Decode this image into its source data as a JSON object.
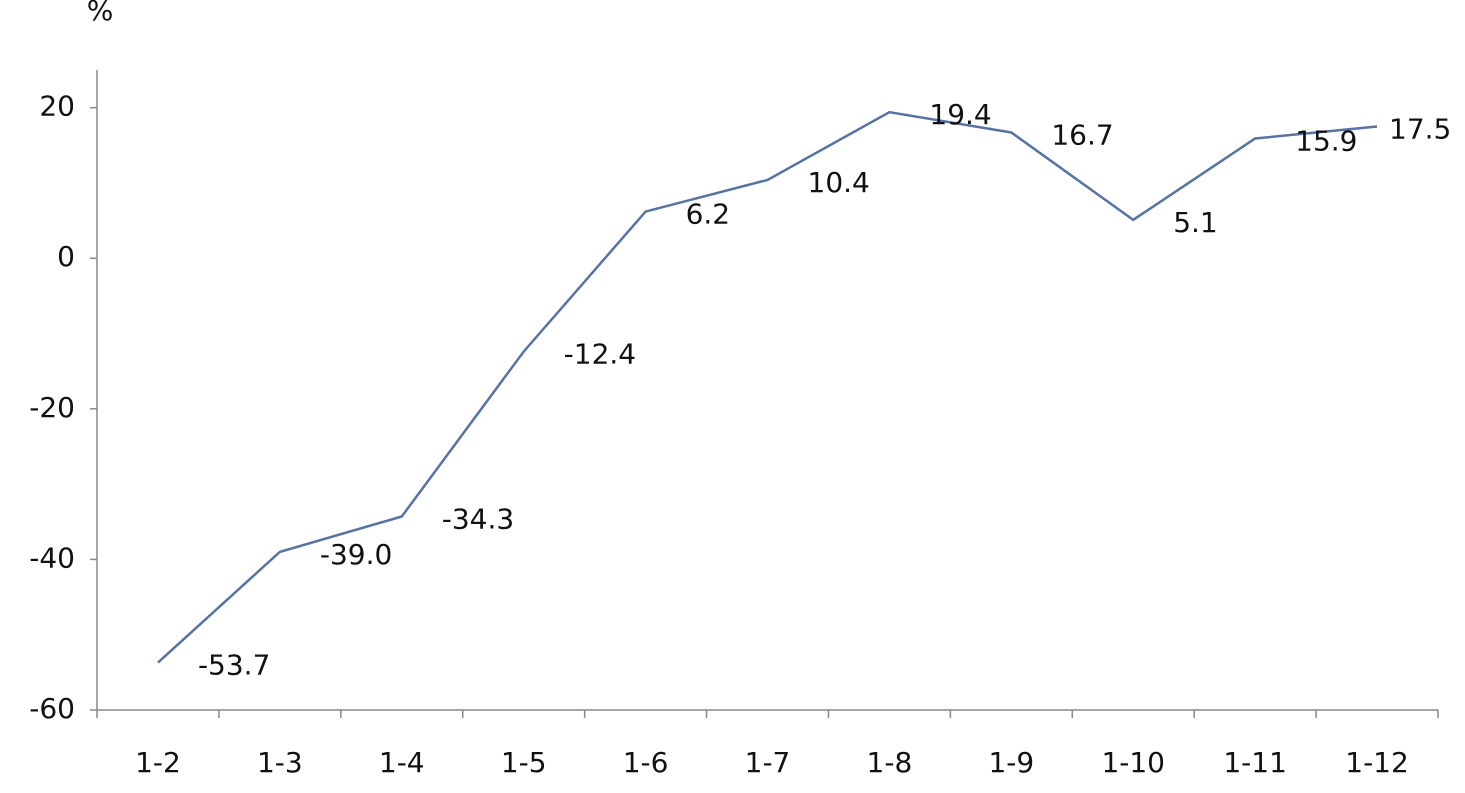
{
  "chart_data": {
    "type": "line",
    "ylabel": "%",
    "categories": [
      "1-2",
      "1-3",
      "1-4",
      "1-5",
      "1-6",
      "1-7",
      "1-8",
      "1-9",
      "1-10",
      "1-11",
      "1-12"
    ],
    "values": [
      -53.7,
      -39.0,
      -34.3,
      -12.4,
      6.2,
      10.4,
      19.4,
      16.7,
      5.1,
      15.9,
      17.5
    ],
    "value_labels": [
      "-53.7",
      "-39.0",
      "-34.3",
      "-12.4",
      "6.2",
      "10.4",
      "19.4",
      "16.7",
      "5.1",
      "15.9",
      "17.5"
    ],
    "color": "#5673a3",
    "ylim": [
      -60,
      25
    ],
    "yticks": [
      20,
      0,
      -20,
      -40,
      -60
    ],
    "grid": false
  }
}
